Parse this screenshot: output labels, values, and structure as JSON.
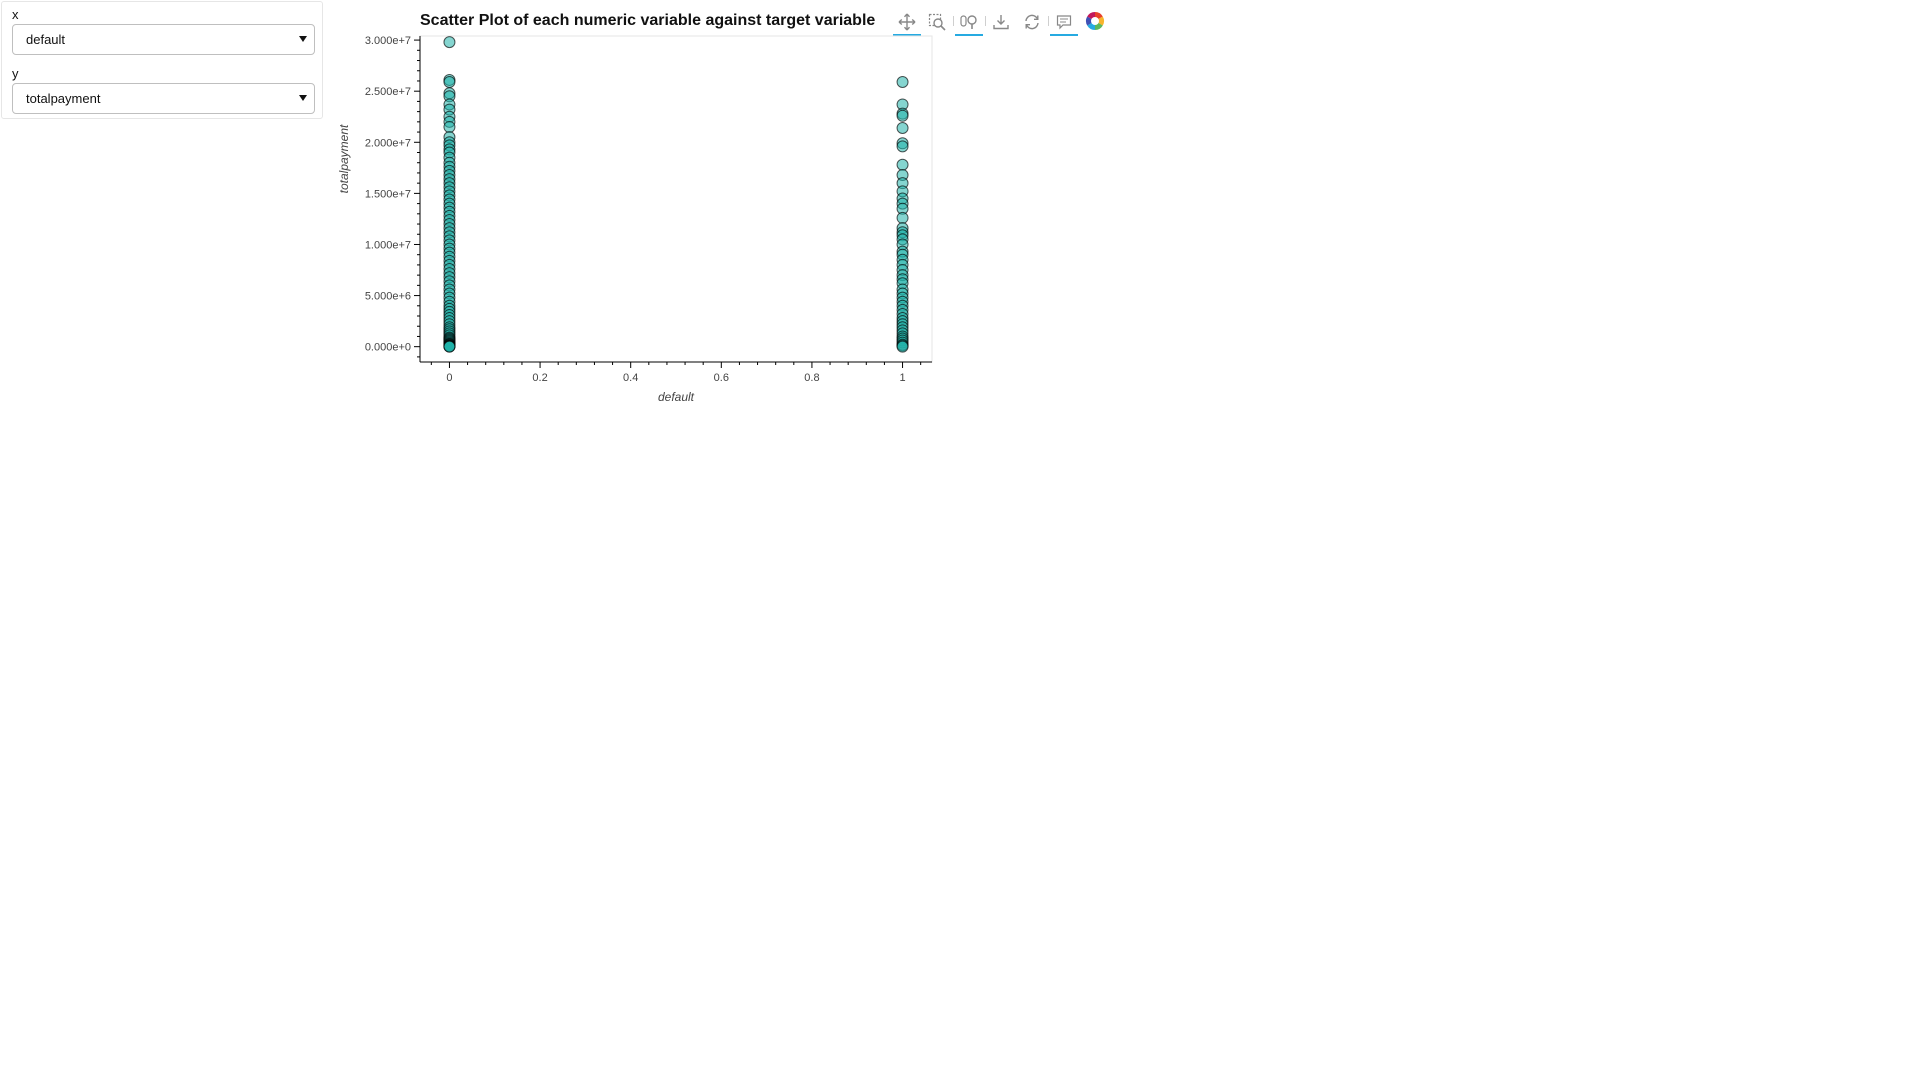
{
  "widgets": {
    "x_label": "x",
    "x_value": "default",
    "y_label": "y",
    "y_value": "totalpayment"
  },
  "toolbar": {
    "tools": [
      "pan-icon",
      "box-zoom-icon",
      "wheel-zoom-icon",
      "save-icon",
      "reset-icon",
      "hover-icon",
      "bokeh-logo"
    ]
  },
  "colors": {
    "marker_fill": "#20b2aa",
    "marker_edge": "#000000",
    "active_tool": "#26aae1"
  },
  "chart_data": {
    "type": "scatter",
    "title": "Scatter Plot of each numeric variable against target variable",
    "xlabel": "default",
    "ylabel": "totalpayment",
    "xlim": [
      -0.065,
      1.065
    ],
    "ylim": [
      -1500000,
      30400000
    ],
    "x_ticks": [
      0,
      0.2,
      0.4,
      0.6,
      0.8,
      1
    ],
    "x_tick_labels": [
      "0",
      "0.2",
      "0.4",
      "0.6",
      "0.8",
      "1"
    ],
    "y_ticks": [
      0,
      5000000,
      10000000,
      15000000,
      20000000,
      25000000,
      30000000
    ],
    "y_tick_labels": [
      "0.000e+0",
      "5.000e+6",
      "1.000e+7",
      "1.500e+7",
      "2.000e+7",
      "2.500e+7",
      "3.000e+7"
    ],
    "grid": false,
    "legend": "none",
    "series": [
      {
        "x": [
          0,
          0,
          0,
          0,
          0,
          0,
          0,
          0,
          0,
          0,
          0,
          0,
          0,
          0,
          0,
          0,
          0,
          0,
          0,
          0,
          0,
          0,
          0,
          0,
          0,
          0,
          0,
          0,
          0,
          0,
          0,
          0,
          0,
          0,
          0,
          0,
          0,
          0,
          0,
          0,
          0,
          0,
          0,
          0,
          0,
          0,
          0,
          0,
          0,
          0,
          0,
          0,
          0,
          0,
          0,
          0,
          0,
          0,
          0,
          0,
          0,
          0,
          0,
          0,
          0,
          0,
          0,
          0,
          0,
          0,
          0,
          0,
          0,
          0,
          0,
          0,
          0,
          0
        ],
        "y": [
          29800000,
          26100000,
          25900000,
          24800000,
          24500000,
          23700000,
          23200000,
          22500000,
          22000000,
          21500000,
          20500000,
          20000000,
          19700000,
          19300000,
          19000000,
          18500000,
          18000000,
          17600000,
          17200000,
          16800000,
          16400000,
          16000000,
          15600000,
          15200000,
          14800000,
          14400000,
          14000000,
          13600000,
          13200000,
          12800000,
          12400000,
          12000000,
          11600000,
          11200000,
          10800000,
          10400000,
          10000000,
          9600000,
          9200000,
          8800000,
          8400000,
          8000000,
          7600000,
          7200000,
          6800000,
          6400000,
          6000000,
          5600000,
          5200000,
          4800000,
          4400000,
          4000000,
          3700000,
          3400000,
          3100000,
          2800000,
          2500000,
          2200000,
          1900000,
          1700000,
          1500000,
          1300000,
          1100000,
          900000,
          800000,
          700000,
          600000,
          500000,
          400000,
          300000,
          250000,
          200000,
          150000,
          100000,
          70000,
          40000,
          20000,
          0
        ]
      },
      {
        "x": [
          1,
          1,
          1,
          1,
          1,
          1,
          1,
          1,
          1,
          1,
          1,
          1,
          1,
          1,
          1,
          1,
          1,
          1,
          1,
          1,
          1,
          1,
          1,
          1,
          1,
          1,
          1,
          1,
          1,
          1,
          1,
          1,
          1,
          1,
          1,
          1,
          1,
          1,
          1,
          1,
          1,
          1,
          1,
          1,
          1,
          1,
          1,
          1
        ],
        "y": [
          25900000,
          23700000,
          22800000,
          22600000,
          21400000,
          19900000,
          19600000,
          17800000,
          16800000,
          16000000,
          15200000,
          14500000,
          14000000,
          13500000,
          12600000,
          11600000,
          11200000,
          10900000,
          10500000,
          10000000,
          9300000,
          9000000,
          8500000,
          8000000,
          7500000,
          7000000,
          6600000,
          6200000,
          5600000,
          5200000,
          4800000,
          4400000,
          4000000,
          3600000,
          3200000,
          2800000,
          2500000,
          2200000,
          1900000,
          1600000,
          1300000,
          1000000,
          800000,
          600000,
          400000,
          200000,
          100000,
          0
        ]
      }
    ]
  }
}
